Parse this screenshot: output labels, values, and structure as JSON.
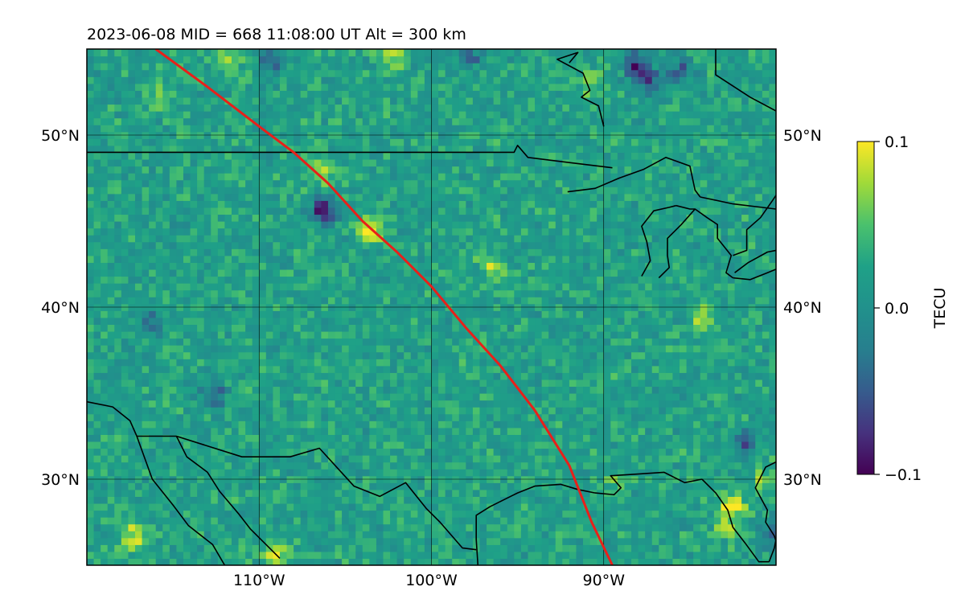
{
  "chart_data": {
    "type": "heatmap",
    "title": "2023-06-08  MID = 668    11:08:00  UT  Alt = 300 km",
    "xlabel": "",
    "ylabel": "",
    "xlim": [
      -120,
      -80
    ],
    "ylim": [
      25,
      55
    ],
    "x_ticks": [
      -110,
      -100,
      -90
    ],
    "x_tick_labels": [
      "110°W",
      "100°W",
      "90°W"
    ],
    "y_ticks": [
      30,
      40,
      50
    ],
    "y_tick_labels": [
      "30°N",
      "40°N",
      "50°N"
    ],
    "grid": true,
    "colormap": "viridis",
    "colorbar": {
      "label": "TECU",
      "range": [
        -0.1,
        0.1
      ],
      "ticks": [
        0.1,
        0.0,
        -0.1
      ],
      "tick_labels": [
        "0.1",
        "0.0",
        "−0.1"
      ],
      "placement": "right"
    },
    "background_level": 0.02,
    "anomalies": [
      {
        "lon": -117.5,
        "lat": 26.5,
        "value": 0.085
      },
      {
        "lon": -116,
        "lat": 52,
        "value": 0.06
      },
      {
        "lon": -112,
        "lat": 54,
        "value": 0.055
      },
      {
        "lon": -106.5,
        "lat": 47.8,
        "value": 0.08
      },
      {
        "lon": -103.7,
        "lat": 44.3,
        "value": 0.1
      },
      {
        "lon": -102.5,
        "lat": 54.5,
        "value": 0.09
      },
      {
        "lon": -99,
        "lat": 54.5,
        "value": 0.085
      },
      {
        "lon": -96.7,
        "lat": 42.2,
        "value": 0.07
      },
      {
        "lon": -91,
        "lat": 52.8,
        "value": 0.06
      },
      {
        "lon": -89.5,
        "lat": 29.6,
        "value": 0.05
      },
      {
        "lon": -84.5,
        "lat": 39.2,
        "value": 0.07
      },
      {
        "lon": -82.8,
        "lat": 28.2,
        "value": 0.1
      },
      {
        "lon": -83,
        "lat": 27,
        "value": 0.07
      },
      {
        "lon": -81,
        "lat": 29.8,
        "value": 0.06
      },
      {
        "lon": -109.2,
        "lat": 25.5,
        "value": 0.08
      },
      {
        "lon": -106.5,
        "lat": 45.4,
        "value": -0.09
      },
      {
        "lon": -109.5,
        "lat": 54,
        "value": -0.04
      },
      {
        "lon": -99.2,
        "lat": 54.6,
        "value": -0.06
      },
      {
        "lon": -98,
        "lat": 54.5,
        "value": -0.04
      },
      {
        "lon": -88.3,
        "lat": 53.8,
        "value": -0.08
      },
      {
        "lon": -87.5,
        "lat": 52.9,
        "value": -0.06
      },
      {
        "lon": -85.8,
        "lat": 53.5,
        "value": -0.05
      },
      {
        "lon": -112.8,
        "lat": 34.8,
        "value": -0.05
      },
      {
        "lon": -116.5,
        "lat": 39,
        "value": -0.04
      },
      {
        "lon": -82,
        "lat": 31.8,
        "value": -0.05
      },
      {
        "lon": -80.5,
        "lat": 26.5,
        "value": -0.04
      }
    ],
    "series": [
      {
        "type": "line",
        "color": "#e8201a",
        "x": [
          -116,
          -113,
          -110,
          -108,
          -106,
          -104,
          -102,
          -100,
          -98,
          -96,
          -94,
          -92,
          -90.7,
          -89.5
        ],
        "y": [
          55,
          52.8,
          50.5,
          49,
          47.2,
          45,
          43.2,
          41.2,
          38.8,
          36.6,
          34,
          30.8,
          27.5,
          25
        ]
      }
    ],
    "coastlines": [
      [
        [
          -120,
          34.5
        ],
        [
          -118.5,
          34.2
        ],
        [
          -117.5,
          33.4
        ],
        [
          -117.1,
          32.5
        ],
        [
          -116.2,
          30
        ],
        [
          -115,
          28.5
        ],
        [
          -114.1,
          27.3
        ],
        [
          -112.7,
          26.2
        ],
        [
          -112,
          25
        ]
      ],
      [
        [
          -114.8,
          32.5
        ],
        [
          -114.2,
          31.3
        ],
        [
          -113,
          30.4
        ],
        [
          -112.3,
          29.3
        ],
        [
          -111.2,
          28
        ],
        [
          -110.5,
          27.1
        ],
        [
          -109.4,
          26
        ],
        [
          -108.8,
          25.4
        ]
      ],
      [
        [
          -120,
          49
        ],
        [
          -110,
          49
        ],
        [
          -95.2,
          49
        ],
        [
          -95,
          49.4
        ],
        [
          -94.4,
          48.7
        ],
        [
          -92,
          48.4
        ],
        [
          -89.5,
          48.1
        ]
      ],
      [
        [
          -92.1,
          46.7
        ],
        [
          -90.5,
          46.9
        ],
        [
          -89.1,
          47.5
        ],
        [
          -87.7,
          48
        ],
        [
          -86.4,
          48.7
        ],
        [
          -85,
          48.2
        ],
        [
          -84.7,
          46.8
        ],
        [
          -84.4,
          46.4
        ]
      ],
      [
        [
          -84.4,
          46.4
        ],
        [
          -82.5,
          46
        ],
        [
          -80,
          45.7
        ]
      ],
      [
        [
          -87.8,
          41.8
        ],
        [
          -87.3,
          42.7
        ],
        [
          -87.5,
          43.8
        ],
        [
          -87.8,
          44.7
        ],
        [
          -87.1,
          45.6
        ],
        [
          -86.2,
          45.8
        ],
        [
          -85.8,
          45.9
        ]
      ],
      [
        [
          -85.8,
          45.9
        ],
        [
          -85,
          45.7
        ],
        [
          -84.7,
          45.7
        ],
        [
          -85.5,
          44.8
        ],
        [
          -86.3,
          44
        ],
        [
          -86.3,
          43
        ],
        [
          -86.2,
          42.3
        ],
        [
          -86.8,
          41.7
        ]
      ],
      [
        [
          -84.7,
          45.7
        ],
        [
          -84,
          45.2
        ],
        [
          -83.4,
          44.8
        ],
        [
          -83.4,
          44
        ],
        [
          -82.6,
          43
        ],
        [
          -82.9,
          42
        ],
        [
          -82.5,
          41.7
        ]
      ],
      [
        [
          -82.5,
          41.7
        ],
        [
          -81.5,
          41.6
        ],
        [
          -80.5,
          42
        ],
        [
          -80,
          42.2
        ]
      ],
      [
        [
          -82.5,
          43
        ],
        [
          -81.7,
          43.3
        ],
        [
          -81.7,
          44.5
        ],
        [
          -80.9,
          45.2
        ],
        [
          -80.2,
          46.2
        ],
        [
          -80,
          46.5
        ]
      ],
      [
        [
          -80,
          43.3
        ],
        [
          -80.5,
          43.2
        ],
        [
          -81.6,
          42.6
        ],
        [
          -82.4,
          42
        ]
      ],
      [
        [
          -83.5,
          55
        ],
        [
          -83.5,
          53.5
        ],
        [
          -81.5,
          52.2
        ],
        [
          -80,
          51.4
        ]
      ],
      [
        [
          -92,
          54.2
        ],
        [
          -91.5,
          54.8
        ],
        [
          -92.7,
          54.4
        ],
        [
          -91.2,
          53.6
        ],
        [
          -90.8,
          52.6
        ],
        [
          -91.3,
          52.2
        ],
        [
          -90.3,
          51.7
        ],
        [
          -90,
          50.5
        ]
      ],
      [
        [
          -97.3,
          25
        ],
        [
          -97.4,
          26.5
        ],
        [
          -97.4,
          27.9
        ],
        [
          -96.6,
          28.4
        ],
        [
          -95,
          29.2
        ],
        [
          -94,
          29.6
        ],
        [
          -92.5,
          29.7
        ],
        [
          -91.5,
          29.4
        ],
        [
          -90.5,
          29.2
        ]
      ],
      [
        [
          -90.5,
          29.2
        ],
        [
          -89.4,
          29.1
        ],
        [
          -89,
          29.5
        ],
        [
          -89.6,
          30.2
        ],
        [
          -88,
          30.3
        ],
        [
          -86.5,
          30.4
        ],
        [
          -85.3,
          29.8
        ],
        [
          -84.3,
          30
        ]
      ],
      [
        [
          -84.3,
          30
        ],
        [
          -83.5,
          29.2
        ],
        [
          -82.8,
          28.2
        ],
        [
          -82.5,
          27.2
        ],
        [
          -81.8,
          26.3
        ],
        [
          -81,
          25.2
        ],
        [
          -80.4,
          25.2
        ]
      ],
      [
        [
          -80.4,
          25.2
        ],
        [
          -80.1,
          26
        ],
        [
          -80,
          26.5
        ]
      ],
      [
        [
          -80,
          31
        ],
        [
          -80.6,
          30.7
        ],
        [
          -81.2,
          29.5
        ],
        [
          -80.5,
          28.2
        ],
        [
          -80.6,
          27.5
        ],
        [
          -80.1,
          26.7
        ],
        [
          -80,
          26.4
        ]
      ],
      [
        [
          -117.1,
          32.5
        ],
        [
          -114.8,
          32.5
        ],
        [
          -111,
          31.3
        ],
        [
          -108.2,
          31.3
        ],
        [
          -106.5,
          31.8
        ],
        [
          -104.5,
          29.6
        ],
        [
          -103,
          29
        ],
        [
          -101.5,
          29.8
        ],
        [
          -100.3,
          28.3
        ],
        [
          -99.5,
          27.5
        ],
        [
          -98.2,
          26
        ],
        [
          -97.4,
          25.9
        ]
      ]
    ]
  }
}
